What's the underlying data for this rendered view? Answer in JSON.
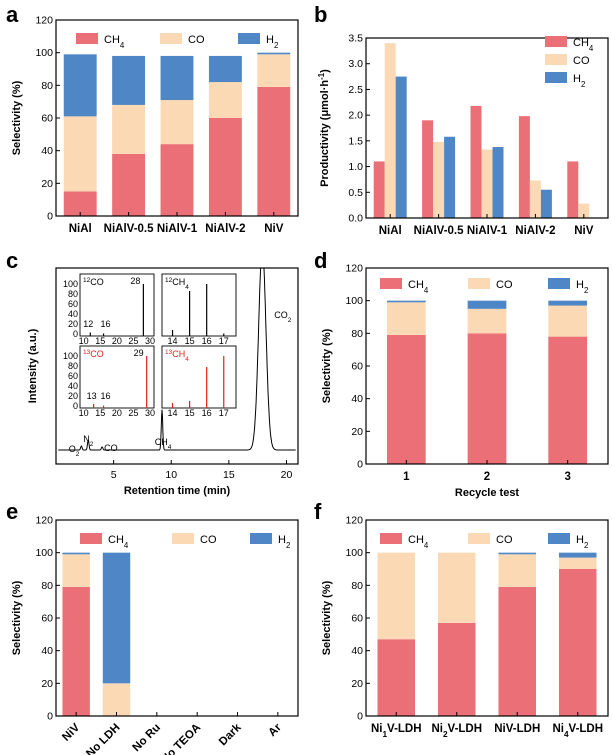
{
  "colors": {
    "ch4": "#ea6f77",
    "co": "#fbd9b4",
    "h2": "#4f86c6",
    "red_text": "#e02020",
    "line": "#000000"
  },
  "chart_data": [
    {
      "panel": "a",
      "type": "bar",
      "stacked": true,
      "categories": [
        "NiAl",
        "NiAlV-0.5",
        "NiAlV-1",
        "NiAlV-2",
        "NiV"
      ],
      "series": [
        {
          "name": "CH4",
          "values": [
            15,
            38,
            44,
            60,
            79
          ]
        },
        {
          "name": "CO",
          "values": [
            46,
            30,
            27,
            22,
            20
          ]
        },
        {
          "name": "H2",
          "values": [
            38,
            30,
            27,
            16,
            1
          ]
        }
      ],
      "legend": [
        "CH",
        "4",
        "CO",
        "H",
        "2"
      ],
      "ylabel": "Selectivity (%)",
      "ylim": [
        0,
        120
      ],
      "yticks": [
        "0",
        "20",
        "40",
        "60",
        "80",
        "100",
        "120"
      ]
    },
    {
      "panel": "b",
      "type": "bar",
      "stacked": false,
      "categories": [
        "NiAl",
        "NiAlV-0.5",
        "NiAlV-1",
        "NiAlV-2",
        "NiV"
      ],
      "series": [
        {
          "name": "CH4",
          "values": [
            1.1,
            1.9,
            2.18,
            1.98,
            1.1
          ]
        },
        {
          "name": "CO",
          "values": [
            3.4,
            1.48,
            1.33,
            0.73,
            0.28
          ]
        },
        {
          "name": "H2",
          "values": [
            2.75,
            1.58,
            1.38,
            0.55,
            0
          ]
        }
      ],
      "legend": [
        "CH",
        "4",
        "CO",
        "H",
        "2"
      ],
      "ylabel": "Productivity (μmol·h",
      "ylabel_sup": "-1",
      "ylabel_end": ")",
      "ylim": [
        0,
        3.5
      ],
      "yticks": [
        "0.0",
        "0.5",
        "1.0",
        "1.5",
        "2.0",
        "2.5",
        "3.0",
        "3.5"
      ]
    },
    {
      "panel": "c",
      "type": "line",
      "xlabel": "Retention time (min)",
      "ylabel": "Intensity (a.u.)",
      "xlim": [
        0,
        21
      ],
      "xticks": [
        "5",
        "10",
        "15",
        "20"
      ],
      "peaks": [
        {
          "label": "O",
          "sub": "2",
          "x": 2.2,
          "height": 0.02
        },
        {
          "label": "N",
          "sub": "2",
          "x": 2.8,
          "height": 0.05
        },
        {
          "label": "CO",
          "x": 4.0,
          "height": 0.015
        },
        {
          "label": "CH",
          "sub": "4",
          "x": 9.2,
          "height": 0.2
        },
        {
          "label": "CO",
          "sub": "2",
          "x": 17.9,
          "height": 1.0
        }
      ],
      "insets": [
        {
          "label_sup": "12",
          "label": "CO",
          "xticks": [
            "10",
            "15",
            "20",
            "25",
            "30"
          ],
          "yticks": [
            "0",
            "20",
            "40",
            "60",
            "80",
            "100"
          ],
          "peaks": [
            {
              "x": 12,
              "h": 3
            },
            {
              "x": 16,
              "h": 1
            },
            {
              "x": 28,
              "h": 100
            }
          ],
          "peak_labels": [
            "12",
            "16",
            "28"
          ],
          "color": "#000000"
        },
        {
          "label_sup": "12",
          "label": "CH",
          "label_sub": "4",
          "xticks": [
            "14",
            "15",
            "16",
            "17"
          ],
          "peaks": [
            {
              "x": 14,
              "h": 8
            },
            {
              "x": 15,
              "h": 86
            },
            {
              "x": 16,
              "h": 100
            },
            {
              "x": 17,
              "h": 1
            }
          ],
          "color": "#000000"
        },
        {
          "label_sup": "13",
          "label": "CO",
          "xticks": [
            "10",
            "15",
            "20",
            "25",
            "30"
          ],
          "yticks": [
            "0",
            "20",
            "40",
            "60",
            "80",
            "100"
          ],
          "peaks": [
            {
              "x": 13,
              "h": 4
            },
            {
              "x": 16,
              "h": 1
            },
            {
              "x": 29,
              "h": 100
            }
          ],
          "peak_labels": [
            "13",
            "16",
            "29"
          ],
          "color": "#e02020"
        },
        {
          "label_sup": "13",
          "label": "CH",
          "label_sub": "4",
          "xticks": [
            "14",
            "15",
            "16",
            "17"
          ],
          "peaks": [
            {
              "x": 14,
              "h": 6
            },
            {
              "x": 15,
              "h": 10
            },
            {
              "x": 16,
              "h": 78
            },
            {
              "x": 17,
              "h": 100
            }
          ],
          "color": "#e02020"
        }
      ]
    },
    {
      "panel": "d",
      "type": "bar",
      "stacked": true,
      "categories": [
        "1",
        "2",
        "3"
      ],
      "series": [
        {
          "name": "CH4",
          "values": [
            79,
            80,
            78
          ]
        },
        {
          "name": "CO",
          "values": [
            20,
            15,
            19
          ]
        },
        {
          "name": "H2",
          "values": [
            1,
            5,
            3
          ]
        }
      ],
      "legend": [
        "CH",
        "4",
        "CO",
        "H",
        "2"
      ],
      "xlabel": "Recycle test",
      "ylabel": "Selectivity (%)",
      "ylim": [
        0,
        120
      ],
      "yticks": [
        "0",
        "20",
        "40",
        "60",
        "80",
        "100",
        "120"
      ]
    },
    {
      "panel": "e",
      "type": "bar",
      "stacked": true,
      "categories": [
        "NiV",
        "No LDH",
        "No Ru",
        "No TEOA",
        "Dark",
        "Ar"
      ],
      "series": [
        {
          "name": "CH4",
          "values": [
            79,
            0,
            0,
            0,
            0,
            0
          ]
        },
        {
          "name": "CO",
          "values": [
            20,
            20,
            0,
            0,
            0,
            0
          ]
        },
        {
          "name": "H2",
          "values": [
            1,
            80,
            0,
            0,
            0,
            0
          ]
        }
      ],
      "legend": [
        "CH",
        "4",
        "CO",
        "H",
        "2"
      ],
      "ylabel": "Selectivity (%)",
      "ylim": [
        0,
        120
      ],
      "yticks": [
        "0",
        "20",
        "40",
        "60",
        "80",
        "100",
        "120"
      ]
    },
    {
      "panel": "f",
      "type": "bar",
      "stacked": true,
      "categories": [
        "Ni1V-LDH",
        "Ni2V-LDH",
        "NiV-LDH",
        "Ni4V-LDH"
      ],
      "category_parts": [
        [
          "Ni",
          "1",
          "V-LDH"
        ],
        [
          "Ni",
          "2",
          "V-LDH"
        ],
        [
          "NiV-LDH",
          "",
          ""
        ],
        [
          "Ni",
          "4",
          "V-LDH"
        ]
      ],
      "series": [
        {
          "name": "CH4",
          "values": [
            47,
            57,
            79,
            90
          ]
        },
        {
          "name": "CO",
          "values": [
            53,
            43,
            20,
            7
          ]
        },
        {
          "name": "H2",
          "values": [
            0,
            0,
            1,
            3
          ]
        }
      ],
      "legend": [
        "CH",
        "4",
        "CO",
        "H",
        "2"
      ],
      "ylabel": "Selectivity (%)",
      "ylim": [
        0,
        120
      ],
      "yticks": [
        "0",
        "20",
        "40",
        "60",
        "80",
        "100",
        "120"
      ]
    }
  ],
  "panel_letters": [
    "a",
    "b",
    "c",
    "d",
    "e",
    "f"
  ]
}
